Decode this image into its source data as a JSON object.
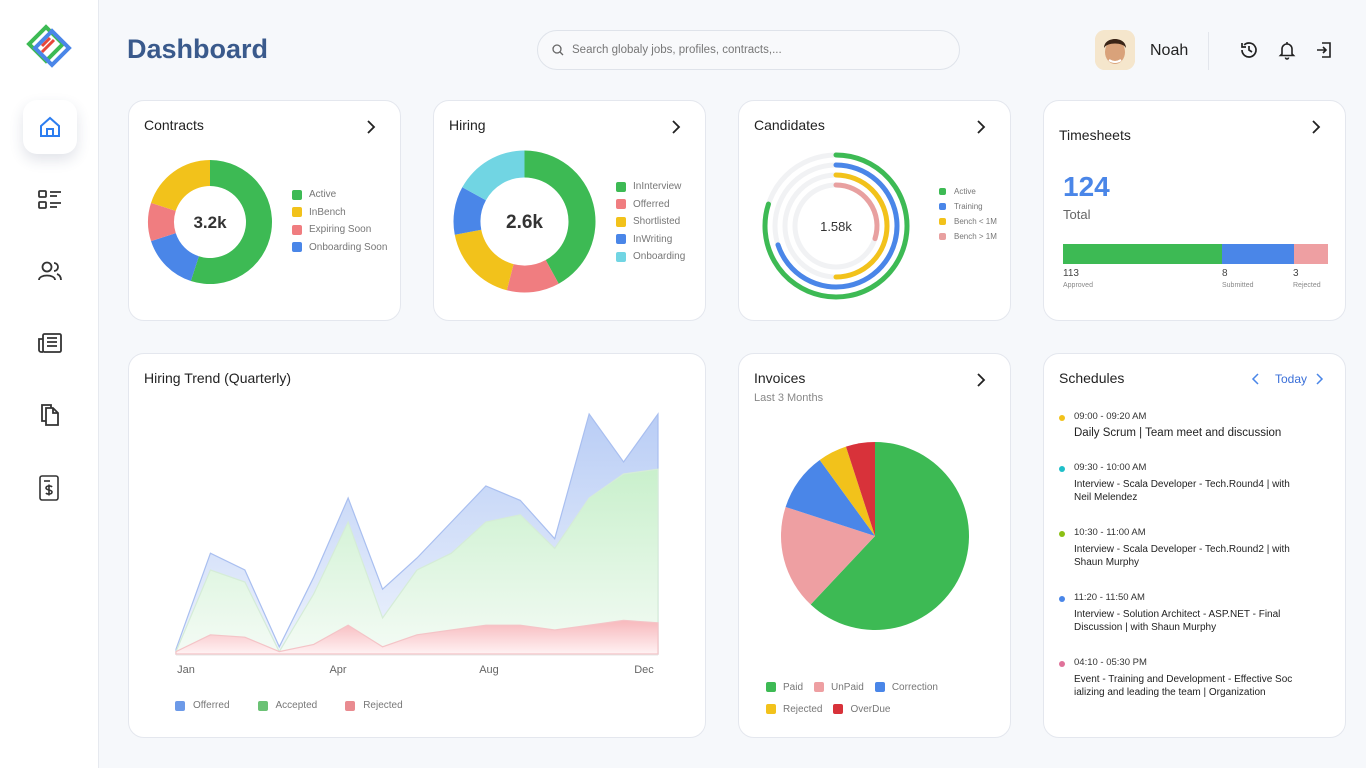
{
  "header": {
    "title": "Dashboard",
    "search_placeholder": "Search globaly jobs, profiles, contracts,...",
    "user_name": "Noah"
  },
  "sidebar": {
    "items": [
      {
        "icon": "home-icon",
        "active": true
      },
      {
        "icon": "list-icon"
      },
      {
        "icon": "users-icon"
      },
      {
        "icon": "news-icon"
      },
      {
        "icon": "documents-icon"
      },
      {
        "icon": "invoice-dollar-icon"
      }
    ]
  },
  "colors": {
    "green": "#3dba54",
    "yellow": "#f2c21b",
    "pink": "#f07d80",
    "blue": "#4a86e8",
    "cyan": "#71d5e3",
    "salmon": "#ee9fa2",
    "red": "#d8323a",
    "light_red": "#e8a0a0"
  },
  "contracts": {
    "title": "Contracts",
    "center_value": "3.2k",
    "legend": [
      "Active",
      "InBench",
      "Expiring Soon",
      "Onboarding Soon"
    ],
    "chart_data": {
      "type": "pie",
      "title": "Contracts",
      "categories": [
        "Active",
        "InBench",
        "Expiring Soon",
        "Onboarding Soon"
      ],
      "values": [
        55,
        20,
        10,
        15
      ]
    }
  },
  "hiring": {
    "title": "Hiring",
    "center_value": "2.6k",
    "legend": [
      "InInterview",
      "Offerred",
      "Shortlisted",
      "InWriting",
      "Onboarding"
    ],
    "chart_data": {
      "type": "pie",
      "title": "Hiring",
      "categories": [
        "InInterview",
        "Offerred",
        "Shortlisted",
        "InWriting",
        "Onboarding"
      ],
      "values": [
        42,
        12,
        18,
        11,
        17
      ]
    }
  },
  "candidates": {
    "title": "Candidates",
    "center_value": "1.58k",
    "legend": [
      "Active",
      "Training",
      "Bench < 1M",
      "Bench > 1M"
    ],
    "chart_data": {
      "type": "pie",
      "title": "Candidates",
      "categories": [
        "Active",
        "Training",
        "Bench < 1M",
        "Bench > 1M"
      ],
      "values": [
        80,
        70,
        50,
        30
      ]
    }
  },
  "timesheets": {
    "title": "Timesheets",
    "total": "124",
    "total_label": "Total",
    "segments": [
      {
        "value": "113",
        "label": "Approved",
        "fraction": 0.6
      },
      {
        "value": "8",
        "label": "Submitted",
        "fraction": 0.27
      },
      {
        "value": "3",
        "label": "Rejected",
        "fraction": 0.13
      }
    ]
  },
  "trend": {
    "title": "Hiring Trend (Quarterly)",
    "legend": [
      "Offerred",
      "Accepted",
      "Rejected"
    ],
    "chart_data": {
      "type": "area",
      "title": "Hiring Trend (Quarterly)",
      "categories": [
        "Jan",
        "Apr",
        "Aug",
        "Dec"
      ],
      "x_tick_labels": [
        "Jan",
        "Apr",
        "Aug",
        "Dec"
      ],
      "x": [
        1,
        2,
        3,
        4,
        5,
        6,
        7,
        8,
        9,
        10,
        11,
        12,
        13,
        14,
        15
      ],
      "series": [
        {
          "name": "Offerred",
          "values": [
            2,
            42,
            35,
            3,
            32,
            65,
            27,
            40,
            55,
            70,
            64,
            48,
            100,
            80,
            100
          ]
        },
        {
          "name": "Accepted",
          "values": [
            1,
            35,
            30,
            1,
            25,
            55,
            15,
            35,
            42,
            55,
            58,
            44,
            65,
            75,
            77
          ]
        },
        {
          "name": "Rejected",
          "values": [
            1,
            8,
            7,
            1,
            4,
            12,
            3,
            8,
            10,
            12,
            12,
            10,
            12,
            14,
            13
          ]
        }
      ],
      "ylim": [
        0,
        100
      ]
    }
  },
  "invoices": {
    "title": "Invoices",
    "subtitle": "Last 3 Months",
    "legend": [
      "Paid",
      "UnPaid",
      "Correction",
      "Rejected",
      "OverDue"
    ],
    "chart_data": {
      "type": "pie",
      "title": "Invoices",
      "categories": [
        "Paid",
        "UnPaid",
        "Correction",
        "Rejected",
        "OverDue"
      ],
      "values": [
        62,
        18,
        10,
        5,
        5
      ]
    }
  },
  "schedules": {
    "title": "Schedules",
    "today_label": "Today",
    "items": [
      {
        "time": "09:00 - 09:20 AM",
        "desc": "Daily Scrum | Team meet and discussion",
        "color": "#f2c21b"
      },
      {
        "time": "09:30 - 10:00 AM",
        "desc": "Interview - Scala Developer - Tech.Round4 | with Neil Melendez",
        "color": "#1fbfc9"
      },
      {
        "time": "10:30 - 11:00 AM",
        "desc": "Interview - Scala Developer - Tech.Round2 | with Shaun Murphy",
        "color": "#8cc014"
      },
      {
        "time": "11:20 - 11:50 AM",
        "desc": "Interview - Solution Architect - ASP.NET - Final Discussion  | with Shaun Murphy",
        "color": "#4a86e8"
      },
      {
        "time": "04:10 - 05:30 PM",
        "desc": "Event - Training and Development - Effective Soc ializing and leading the team | Organization",
        "color": "#e0729a"
      }
    ]
  }
}
